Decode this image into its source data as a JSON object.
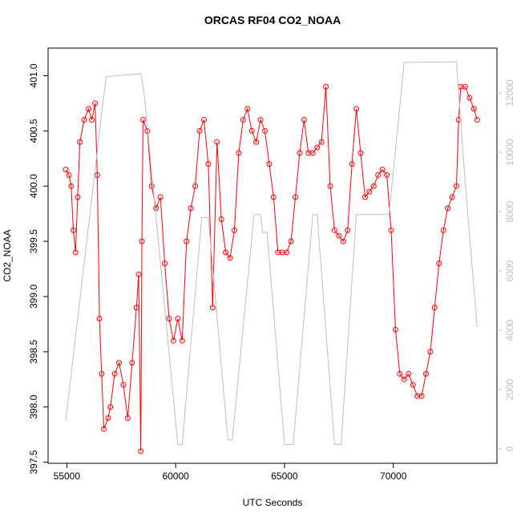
{
  "chart_data": {
    "type": "scatter-line",
    "title": "ORCAS RF04 CO2_NOAA",
    "x_label": "UTC Seconds",
    "y_label": "CO2_NOAA",
    "xlim": [
      54140,
      74760
    ],
    "xticks": [
      55000,
      60000,
      65000,
      70000
    ],
    "ylim": [
      397.49,
      401.25
    ],
    "yticks": [
      397.5,
      {
        "value": 398,
        "label": "398.0"
      },
      398.5,
      {
        "value": 399,
        "label": "399.0"
      },
      399.5,
      {
        "value": 400,
        "label": "400.0"
      },
      400.5,
      {
        "value": 401,
        "label": "401.0"
      }
    ],
    "y2lim": [
      -486,
      13514
    ],
    "y2ticks": [
      0,
      2000,
      4000,
      6000,
      8000,
      10000,
      12000
    ],
    "series": [
      {
        "color": "#ff0000",
        "x": [
          54950,
          55100,
          55200,
          55300,
          55400,
          55500,
          55600,
          55800,
          56000,
          56150,
          56300,
          56400,
          56500,
          56600,
          56700,
          56900,
          57000,
          57200,
          57400,
          57600,
          57800,
          58000,
          58200,
          58300,
          58400,
          58450,
          58500,
          58700,
          58900,
          59100,
          59300,
          59500,
          59700,
          59900,
          60100,
          60300,
          60500,
          60700,
          60900,
          61100,
          61300,
          61500,
          61700,
          61900,
          62100,
          62300,
          62500,
          62700,
          62900,
          63100,
          63300,
          63500,
          63700,
          63900,
          64100,
          64300,
          64500,
          64700,
          64900,
          65100,
          65300,
          65500,
          65700,
          65900,
          66100,
          66300,
          66500,
          66700,
          66900,
          67100,
          67300,
          67500,
          67700,
          67900,
          68100,
          68300,
          68500,
          68700,
          68900,
          69100,
          69300,
          69500,
          69700,
          69900,
          70100,
          70300,
          70500,
          70700,
          70900,
          71100,
          71300,
          71500,
          71700,
          71900,
          72100,
          72300,
          72500,
          72700,
          72900,
          73000,
          73100,
          73300,
          73500,
          73700,
          73850
        ],
        "values": [
          400.15,
          400.1,
          400.0,
          399.6,
          399.4,
          399.9,
          400.4,
          400.6,
          400.7,
          400.6,
          400.75,
          400.1,
          398.8,
          398.3,
          397.8,
          397.9,
          398.0,
          398.3,
          398.4,
          398.2,
          397.9,
          398.4,
          398.9,
          399.2,
          397.6,
          399.5,
          400.6,
          400.5,
          400.0,
          399.8,
          399.9,
          399.3,
          398.8,
          398.6,
          398.8,
          398.6,
          399.5,
          399.8,
          400.0,
          400.5,
          400.6,
          400.2,
          398.9,
          400.4,
          399.7,
          399.4,
          399.35,
          399.6,
          400.3,
          400.6,
          400.7,
          400.5,
          400.4,
          400.6,
          400.5,
          400.2,
          399.9,
          399.4,
          399.4,
          399.4,
          399.5,
          399.9,
          400.3,
          400.6,
          400.3,
          400.3,
          400.35,
          400.4,
          400.9,
          400.0,
          399.6,
          399.55,
          399.5,
          399.6,
          400.2,
          400.7,
          400.3,
          399.9,
          399.95,
          400.0,
          400.1,
          400.15,
          400.1,
          399.6,
          398.7,
          398.3,
          398.25,
          398.3,
          398.2,
          398.1,
          398.1,
          398.3,
          398.5,
          398.9,
          399.3,
          399.6,
          399.8,
          399.9,
          400.0,
          400.6,
          400.9,
          400.9,
          400.8,
          400.7,
          400.6
        ]
      },
      {
        "color": "#bebebe",
        "axis": "y2",
        "x": [
          54950,
          56800,
          58400,
          58550,
          60100,
          60300,
          61200,
          61500,
          62400,
          62600,
          63600,
          63900,
          64000,
          64200,
          65000,
          65400,
          66300,
          66500,
          67300,
          67600,
          68300,
          69800,
          70500,
          72900,
          73300,
          73850
        ],
        "values": [
          950,
          12550,
          12650,
          12000,
          150,
          150,
          7800,
          7800,
          300,
          300,
          7900,
          7900,
          7300,
          7300,
          150,
          150,
          7900,
          7900,
          150,
          150,
          7900,
          7900,
          13030,
          13050,
          9000,
          4100
        ]
      }
    ]
  }
}
